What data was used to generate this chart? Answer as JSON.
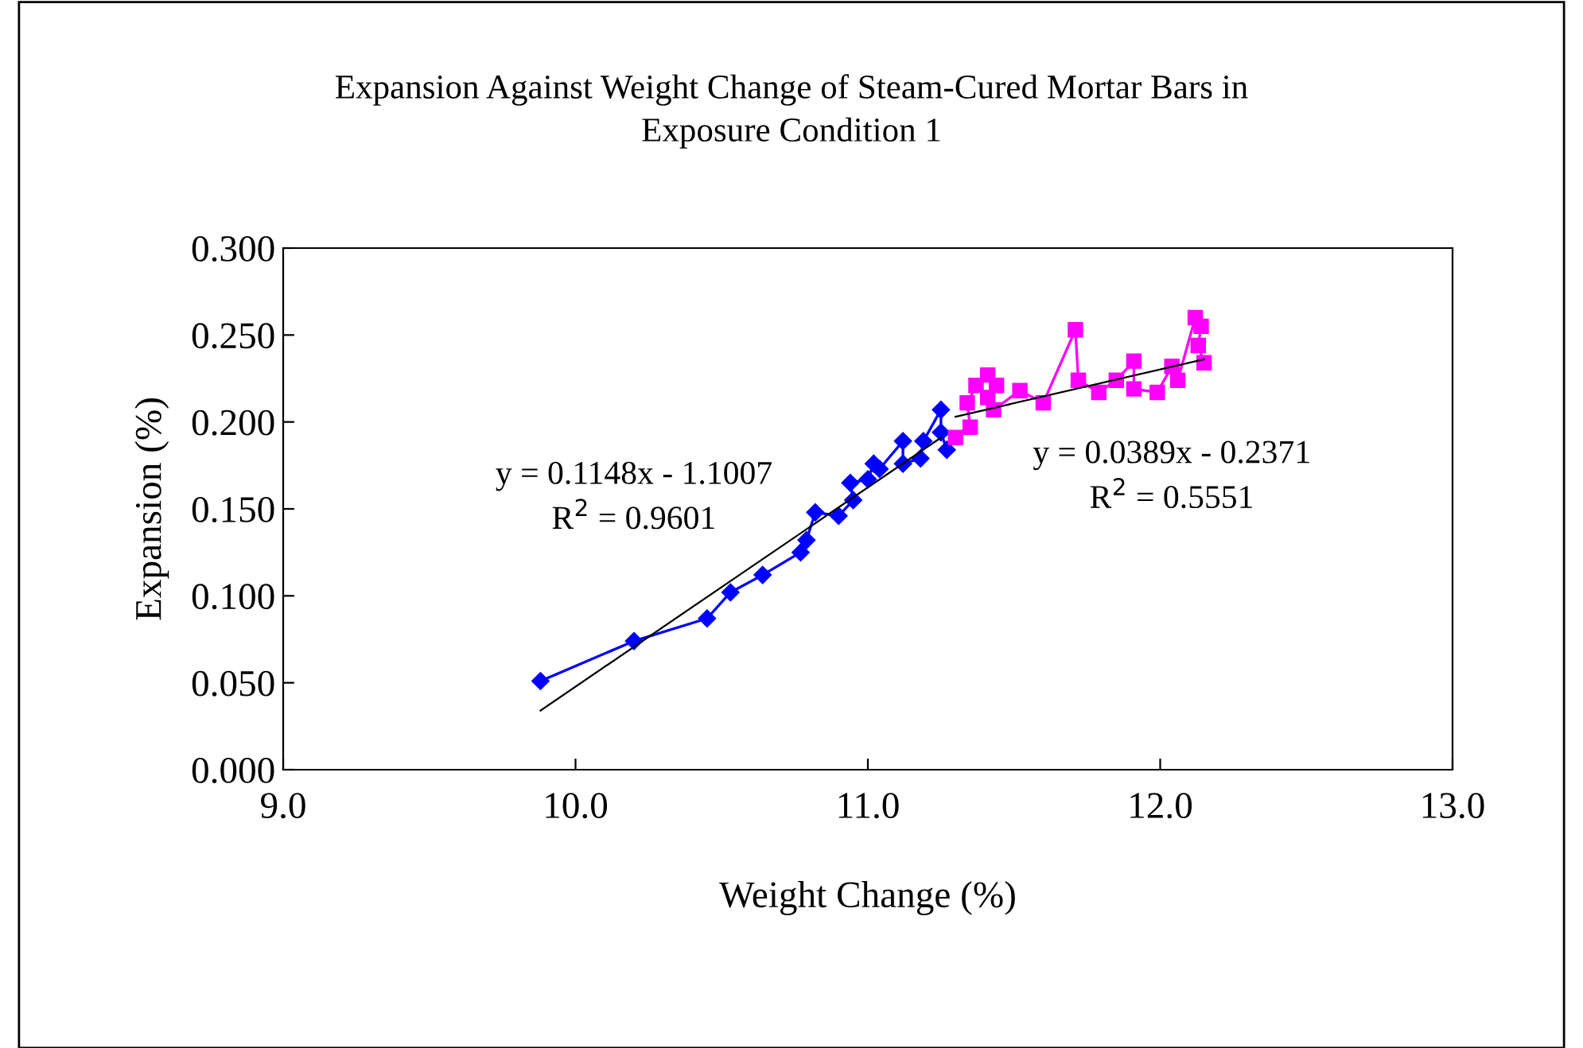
{
  "chart_data": {
    "type": "line",
    "title": "Expansion Against Weight Change of Steam-Cured Mortar Bars in\nExposure Condition 1",
    "xlabel": "Weight Change (%)",
    "ylabel": "Expansion (%)",
    "xlim": [
      9.0,
      13.0
    ],
    "xticks": [
      {
        "value": 9,
        "label": "9.0"
      },
      {
        "value": 10,
        "label": "10.0"
      },
      {
        "value": 11,
        "label": "11.0"
      },
      {
        "value": 12,
        "label": "12.0"
      },
      {
        "value": 13,
        "label": "13.0"
      }
    ],
    "ylim": [
      0,
      0.3
    ],
    "yticks": [
      {
        "value": 0,
        "label": "0.000"
      },
      {
        "value": 0.05,
        "label": "0.050"
      },
      {
        "value": 0.1,
        "label": "0.100"
      },
      {
        "value": 0.15,
        "label": "0.150"
      },
      {
        "value": 0.2,
        "label": "0.200"
      },
      {
        "value": 0.25,
        "label": "0.250"
      },
      {
        "value": 0.3,
        "label": "0.300"
      }
    ],
    "grid": false,
    "legend": false,
    "series": [
      {
        "color": "#0000ff",
        "marker": "diamond",
        "x": [
          9.88,
          10.2,
          10.45,
          10.53,
          10.64,
          10.77,
          10.79,
          10.82,
          10.9,
          10.95,
          10.94,
          11.0,
          11.02,
          11.04,
          11.12,
          11.12,
          11.18,
          11.19,
          11.25,
          11.25,
          11.27
        ],
        "values": [
          0.051,
          0.074,
          0.087,
          0.102,
          0.112,
          0.125,
          0.132,
          0.148,
          0.146,
          0.155,
          0.165,
          0.167,
          0.176,
          0.173,
          0.189,
          0.176,
          0.179,
          0.189,
          0.207,
          0.194,
          0.184
        ]
      },
      {
        "color": "#ff00ff",
        "marker": "square",
        "x": [
          11.3,
          11.35,
          11.34,
          11.37,
          11.41,
          11.44,
          11.41,
          11.43,
          11.52,
          11.6,
          11.71,
          11.72,
          11.79,
          11.85,
          11.91,
          11.91,
          11.99,
          12.04,
          12.06,
          12.12,
          12.14,
          12.13,
          12.15
        ],
        "values": [
          0.191,
          0.197,
          0.211,
          0.221,
          0.227,
          0.221,
          0.214,
          0.207,
          0.218,
          0.211,
          0.253,
          0.224,
          0.217,
          0.224,
          0.235,
          0.219,
          0.217,
          0.232,
          0.224,
          0.26,
          0.255,
          0.244,
          0.234
        ]
      },
      {
        "color": "#000000",
        "marker": "none",
        "x": [
          9.88,
          11.25
        ],
        "values": [
          0.034,
          0.191
        ]
      },
      {
        "color": "#000000",
        "marker": "none",
        "x": [
          11.3,
          12.15
        ],
        "values": [
          0.203,
          0.236
        ]
      }
    ],
    "annotations": [
      "y = 0.1148x - 1.1007\nR$^{2}$ = 0.9601",
      "y = 0.0389x - 0.2371\nR$^{2}$ = 0.5551"
    ]
  }
}
